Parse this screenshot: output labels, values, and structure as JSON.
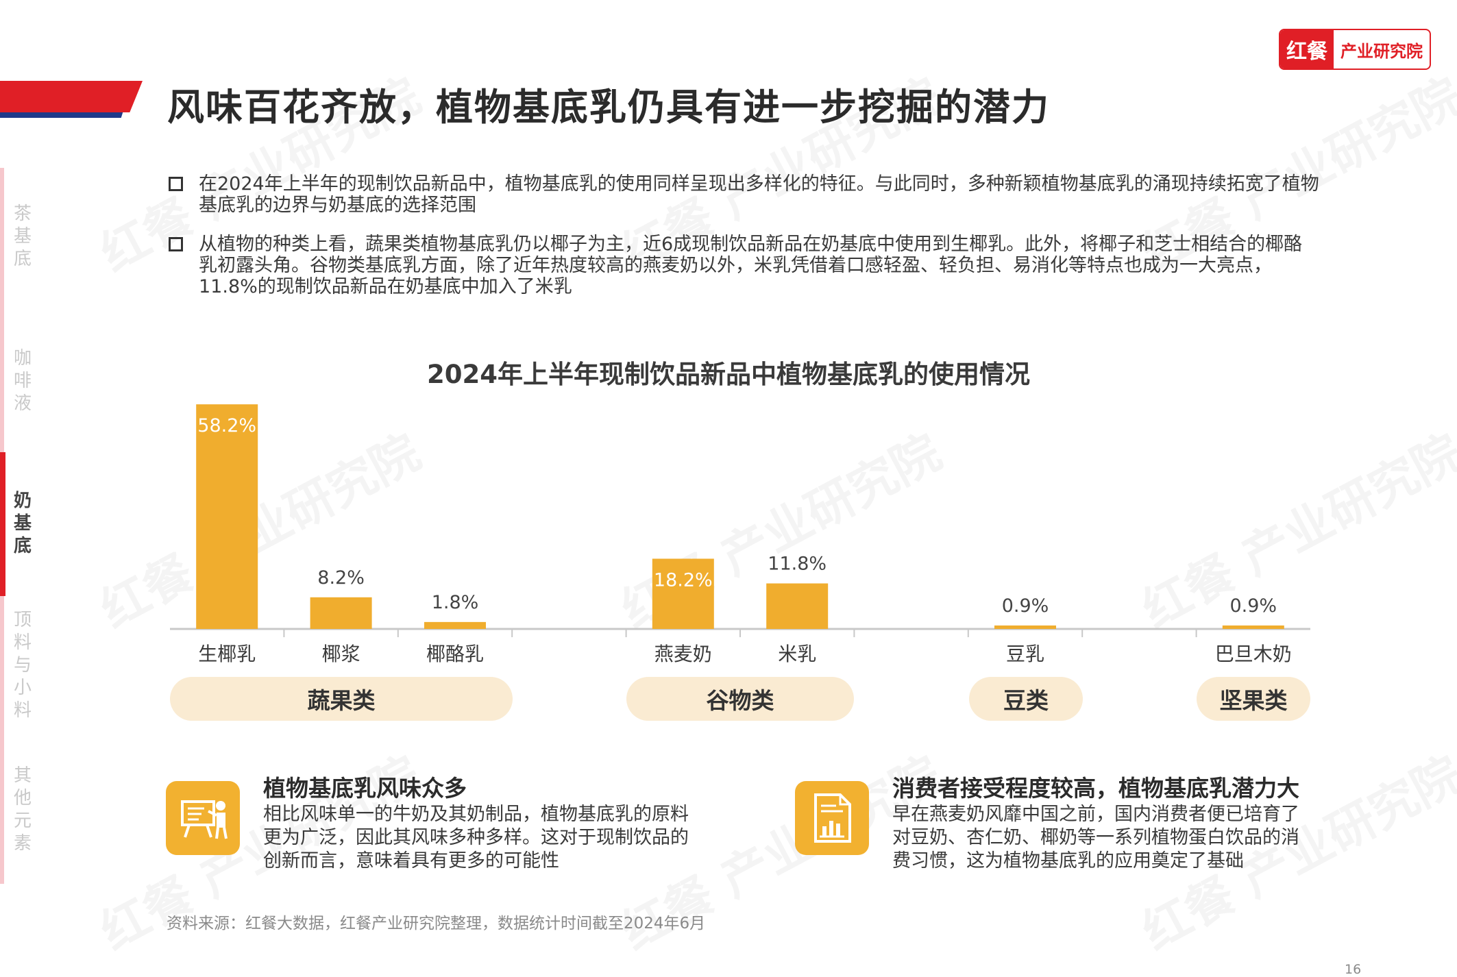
{
  "header": {
    "title": "风味百花齐放，植物基底乳仍具有进一步挖掘的潜力",
    "logo_mark": "红餐",
    "logo_text": "产业研究院",
    "watermark": "红餐 产业研究院"
  },
  "sidebar": {
    "items": [
      {
        "label": "茶基底"
      },
      {
        "label": "咖啡液"
      },
      {
        "label": "奶基底",
        "active": true
      },
      {
        "label": "顶料与小料"
      },
      {
        "label": "其他元素"
      }
    ]
  },
  "bullets": [
    "在2024年上半年的现制饮品新品中，植物基底乳的使用同样呈现出多样化的特征。与此同时，多种新颖植物基底乳的涌现持续拓宽了植物基底乳的边界与奶基底的选择范围",
    "从植物的种类上看，蔬果类植物基底乳仍以椰子为主，近6成现制饮品新品在奶基底中使用到生椰乳。此外，将椰子和芝士相结合的椰酪乳初露头角。谷物类基底乳方面，除了近年热度较高的燕麦奶以外，米乳凭借着口感轻盈、轻负担、易消化等特点也成为一大亮点，11.8%的现制饮品新品在奶基底中加入了米乳"
  ],
  "chart_data": {
    "type": "bar",
    "title": "2024年上半年现制饮品新品中植物基底乳的使用情况",
    "categories": [
      "生椰乳",
      "椰浆",
      "椰酪乳",
      "燕麦奶",
      "米乳",
      "豆乳",
      "巴旦木奶"
    ],
    "values": [
      58.2,
      8.2,
      1.8,
      18.2,
      11.8,
      0.9,
      0.9
    ],
    "data_labels": [
      "58.2%",
      "8.2%",
      "1.8%",
      "18.2%",
      "11.8%",
      "0.9%",
      "0.9%"
    ],
    "groups": [
      {
        "label": "蔬果类",
        "categories": [
          "生椰乳",
          "椰浆",
          "椰酪乳"
        ]
      },
      {
        "label": "谷物类",
        "categories": [
          "燕麦奶",
          "米乳"
        ]
      },
      {
        "label": "豆类",
        "categories": [
          "豆乳"
        ]
      },
      {
        "label": "坚果类",
        "categories": [
          "巴旦木奶"
        ]
      }
    ],
    "unit": "%",
    "ylim": [
      0,
      60
    ],
    "grid": false,
    "bar_color": "#f0ad2e"
  },
  "insights": [
    {
      "icon": "presentation-icon",
      "title": "植物基底乳风味众多",
      "text": "相比风味单一的牛奶及其奶制品，植物基底乳的原料更为广泛，因此其风味多种多样。这对于现制饮品的创新而言，意味着具有更多的可能性"
    },
    {
      "icon": "report-chart-icon",
      "title": "消费者接受程度较高，植物基底乳潜力大",
      "text": "早在燕麦奶风靡中国之前，国内消费者便已培育了对豆奶、杏仁奶、椰奶等一系列植物蛋白饮品的消费习惯，这为植物基底乳的应用奠定了基础"
    }
  ],
  "footer": {
    "source": "资料来源：红餐大数据，红餐产业研究院整理，数据统计时间截至2024年6月",
    "page_number": "16"
  },
  "colors": {
    "brand_red": "#e01f26",
    "brand_blue": "#1f3a8a",
    "bar": "#f0ad2e",
    "pill_bg": "#faebd2",
    "icon_bg": "#f2b130"
  }
}
